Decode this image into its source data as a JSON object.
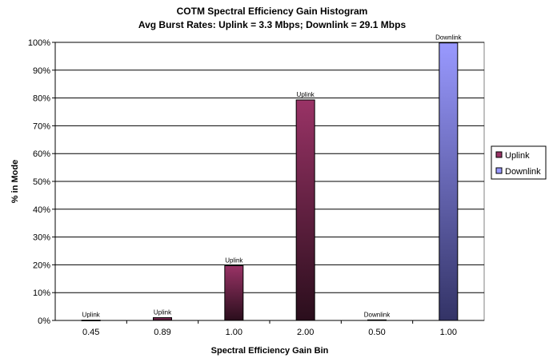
{
  "chart_data": {
    "type": "bar",
    "title": "COTM Spectral Efficiency Gain Histogram",
    "subtitle": "Avg Burst Rates: Uplink = 3.3 Mbps; Downlink = 29.1 Mbps",
    "xlabel": "Spectral Efficiency Gain Bin",
    "ylabel": "% in Mode",
    "ylim": [
      0,
      100
    ],
    "yticks": [
      "0%",
      "10%",
      "20%",
      "30%",
      "40%",
      "50%",
      "60%",
      "70%",
      "80%",
      "90%",
      "100%"
    ],
    "categories": [
      "0.45",
      "0.89",
      "1.00",
      "2.00",
      "0.50",
      "1.00"
    ],
    "bars": [
      {
        "category": "0.45",
        "series": "Uplink",
        "value": 0.1,
        "label": "Uplink"
      },
      {
        "category": "0.89",
        "series": "Uplink",
        "value": 1.0,
        "label": "Uplink"
      },
      {
        "category": "1.00",
        "series": "Uplink",
        "value": 19.7,
        "label": "Uplink"
      },
      {
        "category": "2.00",
        "series": "Uplink",
        "value": 79.3,
        "label": "Uplink"
      },
      {
        "category": "0.50",
        "series": "Downlink",
        "value": 0.2,
        "label": "Downlink"
      },
      {
        "category": "1.00",
        "series": "Downlink",
        "value": 99.8,
        "label": "Downlink"
      }
    ],
    "series": [
      {
        "name": "Uplink",
        "color": "#993366",
        "color_dark": "#2a0e1c"
      },
      {
        "name": "Downlink",
        "color": "#9999ff",
        "color_dark": "#333366"
      }
    ],
    "grid": true,
    "legend_position": "right"
  }
}
